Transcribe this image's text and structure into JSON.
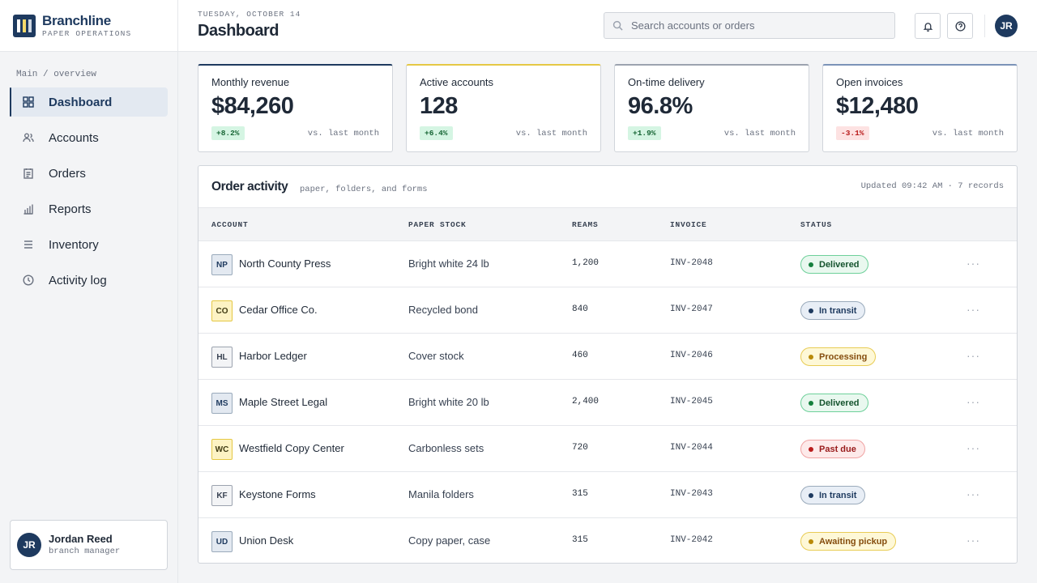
{
  "brand": {
    "name": "Branchline",
    "subtitle": "PAPER OPERATIONS"
  },
  "sidebar": {
    "section_label": "Main / overview",
    "items": [
      {
        "label": "Dashboard",
        "icon": "grid-icon",
        "active": true
      },
      {
        "label": "Accounts",
        "icon": "users-icon"
      },
      {
        "label": "Orders",
        "icon": "document-icon"
      },
      {
        "label": "Reports",
        "icon": "bar-chart-icon"
      },
      {
        "label": "Inventory",
        "icon": "list-icon"
      },
      {
        "label": "Activity log",
        "icon": "clock-icon"
      }
    ],
    "user": {
      "initials": "JR",
      "name": "Jordan Reed",
      "role": "branch manager"
    }
  },
  "header": {
    "date": "TUESDAY, OCTOBER 14",
    "title": "Dashboard",
    "search_placeholder": "Search accounts or orders",
    "avatar_initials": "JR"
  },
  "stats": [
    {
      "label": "Monthly revenue",
      "value": "$84,260",
      "delta": "+8.2%",
      "trend": "up",
      "comparison": "vs. last month",
      "accent": "#1e3a5f"
    },
    {
      "label": "Active accounts",
      "value": "128",
      "delta": "+6.4%",
      "trend": "up",
      "comparison": "vs. last month",
      "accent": "#e5c845"
    },
    {
      "label": "On-time delivery",
      "value": "96.8%",
      "delta": "+1.9%",
      "trend": "up",
      "comparison": "vs. last month",
      "accent": "#9ca3af"
    },
    {
      "label": "Open invoices",
      "value": "$12,480",
      "delta": "-3.1%",
      "trend": "down",
      "comparison": "vs. last month",
      "accent": "#7b93b8"
    }
  ],
  "orders": {
    "title": "Order activity",
    "subtitle": "paper, folders, and forms",
    "meta": "Updated 09:42 AM · 7 records",
    "columns": [
      "ACCOUNT",
      "PAPER STOCK",
      "REAMS",
      "INVOICE",
      "STATUS"
    ],
    "rows": [
      {
        "initials": "NP",
        "badge": "blue",
        "account": "North County Press",
        "stock": "Bright white 24 lb",
        "reams": "1,200",
        "invoice": "INV-2048",
        "status": "Delivered",
        "status_color": "green"
      },
      {
        "initials": "CO",
        "badge": "yellow",
        "account": "Cedar Office Co.",
        "stock": "Recycled bond",
        "reams": "840",
        "invoice": "INV-2047",
        "status": "In transit",
        "status_color": "blue"
      },
      {
        "initials": "HL",
        "badge": "gray",
        "account": "Harbor Ledger",
        "stock": "Cover stock",
        "reams": "460",
        "invoice": "INV-2046",
        "status": "Processing",
        "status_color": "yellow"
      },
      {
        "initials": "MS",
        "badge": "blue",
        "account": "Maple Street Legal",
        "stock": "Bright white 20 lb",
        "reams": "2,400",
        "invoice": "INV-2045",
        "status": "Delivered",
        "status_color": "green"
      },
      {
        "initials": "WC",
        "badge": "yellow",
        "account": "Westfield Copy Center",
        "stock": "Carbonless sets",
        "reams": "720",
        "invoice": "INV-2044",
        "status": "Past due",
        "status_color": "red"
      },
      {
        "initials": "KF",
        "badge": "gray",
        "account": "Keystone Forms",
        "stock": "Manila folders",
        "reams": "315",
        "invoice": "INV-2043",
        "status": "In transit",
        "status_color": "blue"
      },
      {
        "initials": "UD",
        "badge": "blue",
        "account": "Union Desk",
        "stock": "Copy paper, case",
        "reams": "315",
        "invoice": "INV-2042",
        "status": "Awaiting pickup",
        "status_color": "yellow"
      }
    ],
    "row_action": "···"
  }
}
